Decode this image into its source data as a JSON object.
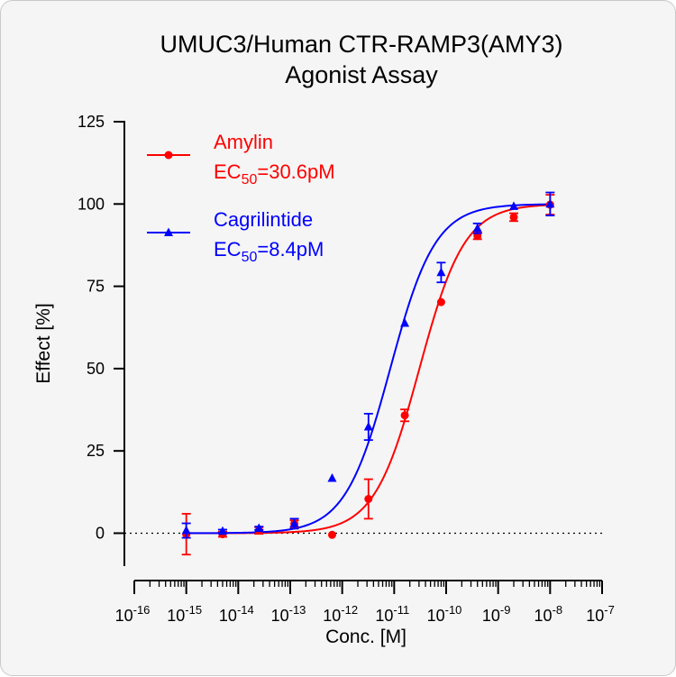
{
  "chart_data": {
    "type": "scatter",
    "title": "UMUC3/Human CTR-RAMP3(AMY3)",
    "subtitle": "Agonist Assay",
    "xlabel": "Conc. [M]",
    "ylabel": "Effect  [%]",
    "x_scale": "log",
    "xlim": [
      1e-16,
      1e-07
    ],
    "ylim": [
      -10,
      125
    ],
    "x_ticks": [
      {
        "base": "10",
        "exp": "-16"
      },
      {
        "base": "10",
        "exp": "-15"
      },
      {
        "base": "10",
        "exp": "-14"
      },
      {
        "base": "10",
        "exp": "-13"
      },
      {
        "base": "10",
        "exp": "-12"
      },
      {
        "base": "10",
        "exp": "-11"
      },
      {
        "base": "10",
        "exp": "-10"
      },
      {
        "base": "10",
        "exp": "-9"
      },
      {
        "base": "10",
        "exp": "-8"
      },
      {
        "base": "10",
        "exp": "-7"
      }
    ],
    "y_ticks": [
      "0",
      "25",
      "50",
      "75",
      "100",
      "125"
    ],
    "baseline": {
      "y": 0,
      "style": "dotted"
    },
    "grid": false,
    "legend_position": "top-left",
    "series": [
      {
        "name": "Amylin",
        "ec50_label": {
          "prefix": "EC",
          "sub": "50",
          "suffix": "=30.6pM"
        },
        "ec50": 3.06e-11,
        "color": "#ff0000",
        "marker": "circle",
        "points": [
          {
            "x": 1e-15,
            "y": -0.3,
            "err": 6.2
          },
          {
            "x": 5e-15,
            "y": -0.3,
            "err": 0.8
          },
          {
            "x": 2.5e-14,
            "y": 0.8,
            "err": 1.0
          },
          {
            "x": 1.2e-13,
            "y": 2.9,
            "err": 1.0
          },
          {
            "x": 6.4e-13,
            "y": -0.5,
            "err": 0
          },
          {
            "x": 3.2e-12,
            "y": 10.4,
            "err": 6.0
          },
          {
            "x": 1.6e-11,
            "y": 35.8,
            "err": 1.8
          },
          {
            "x": 8e-11,
            "y": 70.2,
            "err": 0
          },
          {
            "x": 4e-10,
            "y": 90.3,
            "err": 1.0
          },
          {
            "x": 2e-09,
            "y": 96.0,
            "err": 1.2
          },
          {
            "x": 1e-08,
            "y": 99.8,
            "err": 3.0
          }
        ]
      },
      {
        "name": "Cagrilintide",
        "ec50_label": {
          "prefix": "EC",
          "sub": "50",
          "suffix": "=8.4pM"
        },
        "ec50": 8.4e-12,
        "color": "#0000ff",
        "marker": "triangle",
        "points": [
          {
            "x": 1e-15,
            "y": 0.8,
            "err": 2.2
          },
          {
            "x": 5e-15,
            "y": 0.6,
            "err": 0.5
          },
          {
            "x": 2.5e-14,
            "y": 1.5,
            "err": 0.5
          },
          {
            "x": 1.2e-13,
            "y": 2.9,
            "err": 1.5
          },
          {
            "x": 6.4e-13,
            "y": 16.7,
            "err": 0
          },
          {
            "x": 3.2e-12,
            "y": 32.3,
            "err": 4.0
          },
          {
            "x": 1.6e-11,
            "y": 63.8,
            "err": 0
          },
          {
            "x": 8e-11,
            "y": 79.2,
            "err": 3.0
          },
          {
            "x": 4e-10,
            "y": 92.6,
            "err": 1.5
          },
          {
            "x": 2e-09,
            "y": 99.3,
            "err": 0
          },
          {
            "x": 1e-08,
            "y": 100.0,
            "err": 3.5
          }
        ]
      }
    ]
  }
}
